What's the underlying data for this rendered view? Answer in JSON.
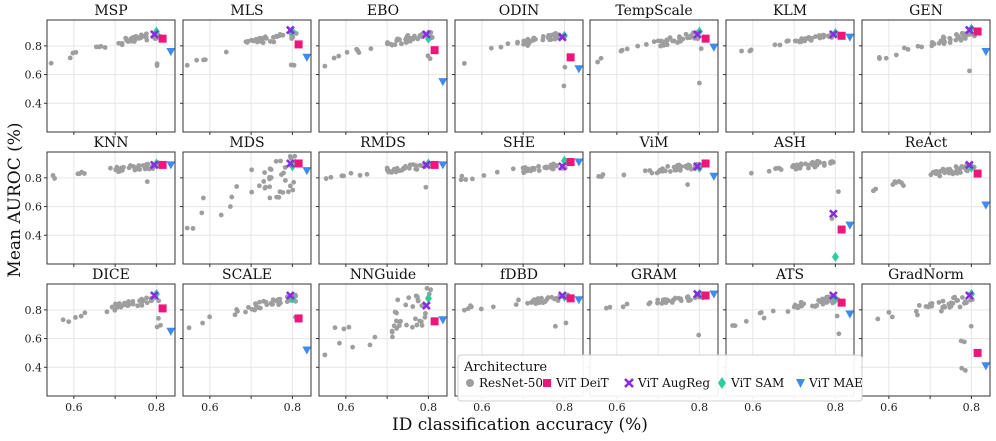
{
  "chart_data": {
    "type": "scatter",
    "title": "",
    "xlabel": "ID classification accuracy (%)",
    "ylabel": "Mean AUROC (%)",
    "xlim": [
      0.535,
      0.845
    ],
    "ylim": [
      0.2,
      0.98
    ],
    "xticks": [
      0.6,
      0.7,
      0.8
    ],
    "yticks": [
      0.4,
      0.6,
      0.8
    ],
    "xtick_labels": [
      "0.6",
      "0.8"
    ],
    "ytick_labels": [
      "0.4",
      "0.6",
      "0.8"
    ],
    "grid": true,
    "legend": {
      "title": "Architecture",
      "placement": "lower-right",
      "entries": [
        {
          "name": "ResNet-50",
          "marker": "circle",
          "color": "#9e9e9e"
        },
        {
          "name": "ViT DeiT",
          "marker": "square",
          "color": "#f0157a"
        },
        {
          "name": "ViT AugReg",
          "marker": "x",
          "color": "#8a2be2"
        },
        {
          "name": "ViT SAM",
          "marker": "diamond",
          "color": "#2ecc9a"
        },
        {
          "name": "ViT MAE",
          "marker": "triangle-down",
          "color": "#3d8bee"
        }
      ]
    },
    "vit_accuracy": {
      "deit": 0.815,
      "augreg": 0.795,
      "sam": 0.8,
      "mae": 0.835
    },
    "panels": [
      {
        "name": "MSP",
        "shape": "standard",
        "deit": 0.85,
        "augreg": 0.88,
        "sam": 0.9,
        "mae": 0.76
      },
      {
        "name": "MLS",
        "shape": "standard",
        "deit": 0.81,
        "augreg": 0.91,
        "sam": 0.9,
        "mae": 0.72
      },
      {
        "name": "EBO",
        "shape": "standard",
        "deit": 0.77,
        "augreg": 0.88,
        "sam": 0.85,
        "mae": 0.55
      },
      {
        "name": "ODIN",
        "shape": "standard",
        "deit": 0.72,
        "augreg": 0.86,
        "sam": 0.87,
        "mae": 0.64
      },
      {
        "name": "TempScale",
        "shape": "standard",
        "deit": 0.85,
        "augreg": 0.88,
        "sam": 0.9,
        "mae": 0.79
      },
      {
        "name": "KLM",
        "shape": "rising",
        "deit": 0.87,
        "augreg": 0.88,
        "sam": 0.89,
        "mae": 0.86
      },
      {
        "name": "GEN",
        "shape": "standard",
        "deit": 0.9,
        "augreg": 0.91,
        "sam": 0.92,
        "mae": 0.76
      },
      {
        "name": "KNN",
        "shape": "flat",
        "deit": 0.89,
        "augreg": 0.89,
        "sam": 0.9,
        "mae": 0.89
      },
      {
        "name": "MDS",
        "shape": "scattered",
        "deit": 0.9,
        "augreg": 0.9,
        "sam": 0.88,
        "mae": 0.85
      },
      {
        "name": "RMDS",
        "shape": "flat",
        "deit": 0.89,
        "augreg": 0.89,
        "sam": 0.9,
        "mae": 0.89
      },
      {
        "name": "SHE",
        "shape": "flat",
        "deit": 0.91,
        "augreg": 0.88,
        "sam": 0.92,
        "mae": 0.91
      },
      {
        "name": "ViM",
        "shape": "flat",
        "deit": 0.9,
        "augreg": 0.88,
        "sam": 0.87,
        "mae": 0.81
      },
      {
        "name": "ASH",
        "shape": "cliff",
        "deit": 0.44,
        "augreg": 0.55,
        "sam": 0.25,
        "mae": 0.47
      },
      {
        "name": "ReAct",
        "shape": "standard",
        "deit": 0.83,
        "augreg": 0.89,
        "sam": 0.87,
        "mae": 0.61
      },
      {
        "name": "DICE",
        "shape": "standard",
        "deit": 0.81,
        "augreg": 0.9,
        "sam": 0.91,
        "mae": 0.65
      },
      {
        "name": "SCALE",
        "shape": "standard",
        "deit": 0.74,
        "augreg": 0.9,
        "sam": 0.88,
        "mae": 0.52
      },
      {
        "name": "NNGuide",
        "shape": "scattered",
        "deit": 0.72,
        "augreg": 0.83,
        "sam": 0.88,
        "mae": 0.73
      },
      {
        "name": "fDBD",
        "shape": "flat",
        "deit": 0.88,
        "augreg": 0.9,
        "sam": 0.89,
        "mae": 0.87
      },
      {
        "name": "GRAM",
        "shape": "flat",
        "deit": 0.9,
        "augreg": 0.91,
        "sam": 0.91,
        "mae": 0.91
      },
      {
        "name": "ATS",
        "shape": "standard",
        "deit": 0.85,
        "augreg": 0.9,
        "sam": 0.88,
        "mae": 0.77
      },
      {
        "name": "GradNorm",
        "shape": "gradnorm",
        "deit": 0.5,
        "augreg": 0.9,
        "sam": 0.91,
        "mae": 0.41
      }
    ]
  }
}
